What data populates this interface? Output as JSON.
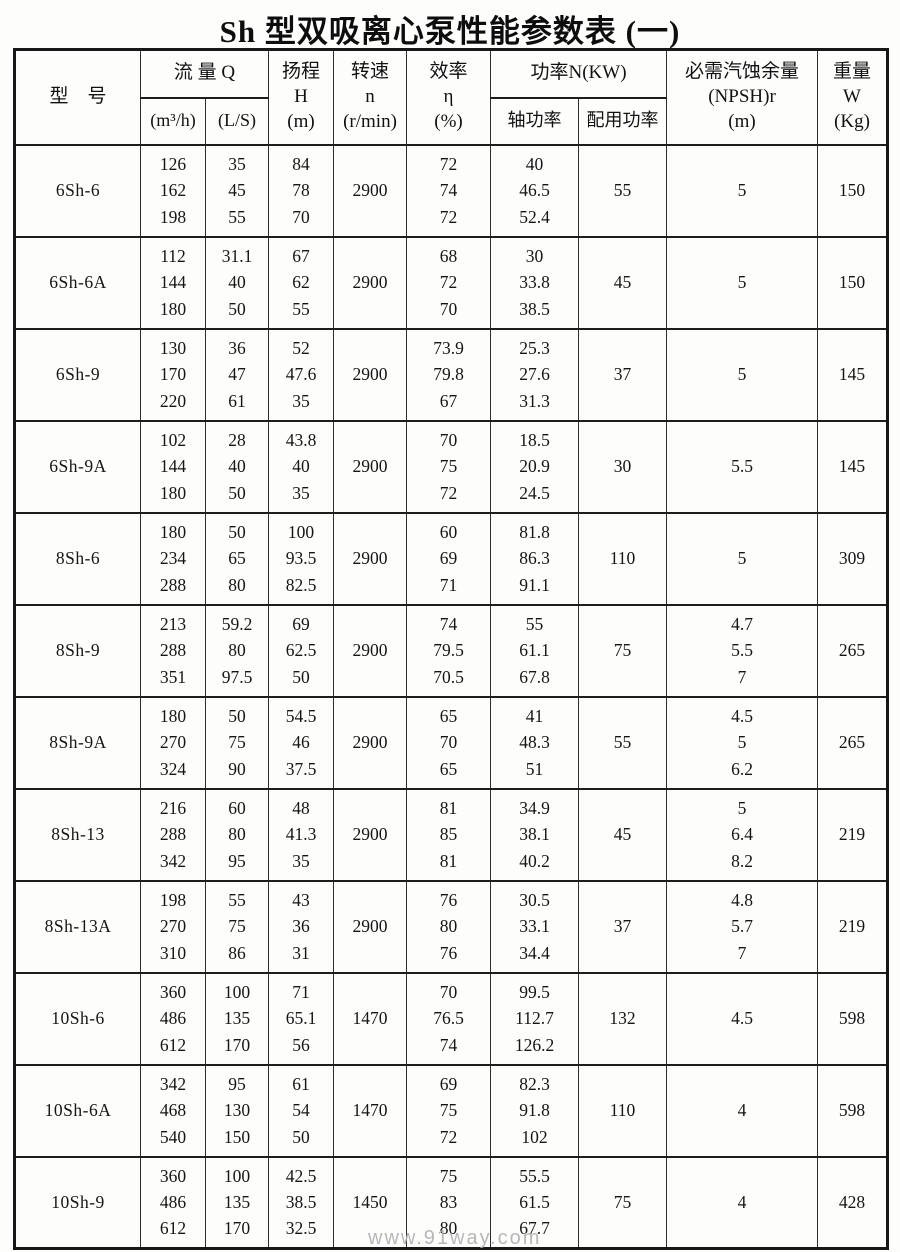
{
  "title": "Sh 型双吸离心泵性能参数表 (一)",
  "watermark": "www.91way.com",
  "table": {
    "headers": {
      "model": "型　号",
      "flow_group": "流 量 Q",
      "flow_m3h": "(m³/h)",
      "flow_ls": "(L/S)",
      "head": [
        "扬程",
        "H",
        "(m)"
      ],
      "speed": [
        "转速",
        "n",
        "(r/min)"
      ],
      "efficiency": [
        "效率",
        "η",
        "(%)"
      ],
      "power_group": "功率N(KW)",
      "shaft_power": "轴功率",
      "rated_power": "配用功率",
      "npsh": [
        "必需汽蚀余量",
        "(NPSH)r",
        "(m)"
      ],
      "weight": [
        "重量",
        "W",
        "(Kg)"
      ]
    },
    "column_keys": [
      "model",
      "q_m3h",
      "q_ls",
      "head",
      "speed",
      "efficiency",
      "shaft_power",
      "rated_power",
      "npsh",
      "weight"
    ],
    "rows": [
      {
        "model": "6Sh-6",
        "q_m3h": [
          126,
          162,
          198
        ],
        "q_ls": [
          35,
          45,
          55
        ],
        "head": [
          84,
          78,
          70
        ],
        "speed": 2900,
        "efficiency": [
          72,
          74,
          72
        ],
        "shaft_power": [
          40,
          46.5,
          52.4
        ],
        "rated_power": 55,
        "npsh": [
          5
        ],
        "weight": 150
      },
      {
        "model": "6Sh-6A",
        "q_m3h": [
          112,
          144,
          180
        ],
        "q_ls": [
          31.1,
          40,
          50
        ],
        "head": [
          67,
          62,
          55
        ],
        "speed": 2900,
        "efficiency": [
          68,
          72,
          70
        ],
        "shaft_power": [
          30,
          33.8,
          38.5
        ],
        "rated_power": 45,
        "npsh": [
          5
        ],
        "weight": 150
      },
      {
        "model": "6Sh-9",
        "q_m3h": [
          130,
          170,
          220
        ],
        "q_ls": [
          36,
          47,
          61
        ],
        "head": [
          52,
          47.6,
          35
        ],
        "speed": 2900,
        "efficiency": [
          73.9,
          79.8,
          67
        ],
        "shaft_power": [
          25.3,
          27.6,
          31.3
        ],
        "rated_power": 37,
        "npsh": [
          5
        ],
        "weight": 145
      },
      {
        "model": "6Sh-9A",
        "q_m3h": [
          102,
          144,
          180
        ],
        "q_ls": [
          28,
          40,
          50
        ],
        "head": [
          43.8,
          40,
          35
        ],
        "speed": 2900,
        "efficiency": [
          70,
          75,
          72
        ],
        "shaft_power": [
          18.5,
          20.9,
          24.5
        ],
        "rated_power": 30,
        "npsh": [
          5.5
        ],
        "weight": 145
      },
      {
        "model": "8Sh-6",
        "q_m3h": [
          180,
          234,
          288
        ],
        "q_ls": [
          50,
          65,
          80
        ],
        "head": [
          100,
          93.5,
          82.5
        ],
        "speed": 2900,
        "efficiency": [
          60,
          69,
          71
        ],
        "shaft_power": [
          81.8,
          86.3,
          91.1
        ],
        "rated_power": 110,
        "npsh": [
          5
        ],
        "weight": 309
      },
      {
        "model": "8Sh-9",
        "q_m3h": [
          213,
          288,
          351
        ],
        "q_ls": [
          59.2,
          80,
          97.5
        ],
        "head": [
          69,
          62.5,
          50
        ],
        "speed": 2900,
        "efficiency": [
          74,
          79.5,
          70.5
        ],
        "shaft_power": [
          55,
          61.1,
          67.8
        ],
        "rated_power": 75,
        "npsh": [
          4.7,
          5.5,
          7
        ],
        "weight": 265
      },
      {
        "model": "8Sh-9A",
        "q_m3h": [
          180,
          270,
          324
        ],
        "q_ls": [
          50,
          75,
          90
        ],
        "head": [
          54.5,
          46,
          37.5
        ],
        "speed": 2900,
        "efficiency": [
          65,
          70,
          65
        ],
        "shaft_power": [
          41,
          48.3,
          51
        ],
        "rated_power": 55,
        "npsh": [
          4.5,
          5,
          6.2
        ],
        "weight": 265
      },
      {
        "model": "8Sh-13",
        "q_m3h": [
          216,
          288,
          342
        ],
        "q_ls": [
          60,
          80,
          95
        ],
        "head": [
          48,
          41.3,
          35
        ],
        "speed": 2900,
        "efficiency": [
          81,
          85,
          81
        ],
        "shaft_power": [
          34.9,
          38.1,
          40.2
        ],
        "rated_power": 45,
        "npsh": [
          5,
          6.4,
          8.2
        ],
        "weight": 219
      },
      {
        "model": "8Sh-13A",
        "q_m3h": [
          198,
          270,
          310
        ],
        "q_ls": [
          55,
          75,
          86
        ],
        "head": [
          43,
          36,
          31
        ],
        "speed": 2900,
        "efficiency": [
          76,
          80,
          76
        ],
        "shaft_power": [
          30.5,
          33.1,
          34.4
        ],
        "rated_power": 37,
        "npsh": [
          4.8,
          5.7,
          7
        ],
        "weight": 219
      },
      {
        "model": "10Sh-6",
        "q_m3h": [
          360,
          486,
          612
        ],
        "q_ls": [
          100,
          135,
          170
        ],
        "head": [
          71,
          65.1,
          56
        ],
        "speed": 1470,
        "efficiency": [
          70,
          76.5,
          74
        ],
        "shaft_power": [
          99.5,
          112.7,
          126.2
        ],
        "rated_power": 132,
        "npsh": [
          4.5
        ],
        "weight": 598
      },
      {
        "model": "10Sh-6A",
        "q_m3h": [
          342,
          468,
          540
        ],
        "q_ls": [
          95,
          130,
          150
        ],
        "head": [
          61,
          54,
          50
        ],
        "speed": 1470,
        "efficiency": [
          69,
          75,
          72
        ],
        "shaft_power": [
          82.3,
          91.8,
          102
        ],
        "rated_power": 110,
        "npsh": [
          4
        ],
        "weight": 598
      },
      {
        "model": "10Sh-9",
        "q_m3h": [
          360,
          486,
          612
        ],
        "q_ls": [
          100,
          135,
          170
        ],
        "head": [
          42.5,
          38.5,
          32.5
        ],
        "speed": 1450,
        "efficiency": [
          75,
          83,
          80
        ],
        "shaft_power": [
          55.5,
          61.5,
          67.7
        ],
        "rated_power": 75,
        "npsh": [
          4
        ],
        "weight": 428
      }
    ]
  }
}
